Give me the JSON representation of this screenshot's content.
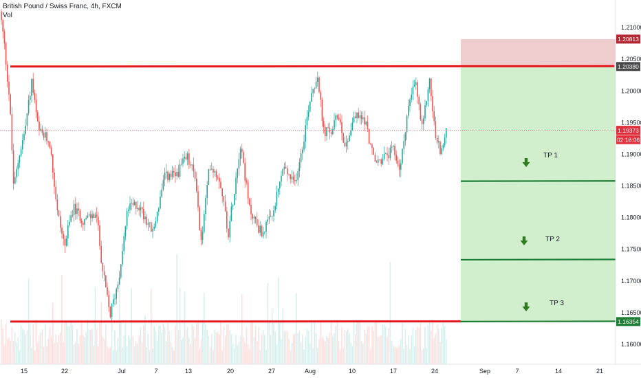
{
  "chart_data": {
    "type": "candlestick",
    "symbol_title": "British Pound / Swiss Franc, 4h, FXCM",
    "volume_label": "Vol",
    "x_tick_labels": [
      "15",
      "22",
      "Jul",
      "7",
      "13",
      "20",
      "27",
      "Aug",
      "10",
      "17",
      "24",
      "Sep",
      "7",
      "14",
      "21"
    ],
    "y_tick_labels": [
      "1.21000",
      "1.20500",
      "1.20000",
      "1.19500",
      "1.19000",
      "1.18500",
      "1.18000",
      "1.17500",
      "1.17000",
      "1.16500",
      "1.16000"
    ],
    "y_range": [
      1.1568,
      1.2143
    ],
    "price_badges": [
      {
        "value": "1.20813",
        "price": 1.20813,
        "color": "#b22833"
      },
      {
        "value": "1.20380",
        "price": 1.2038,
        "color": "#4a4a4a"
      },
      {
        "value": "1.19373",
        "price": 1.19373,
        "color": "#e0303c"
      },
      {
        "value": "02:18:06",
        "price": 1.19225,
        "color": "#e0303c"
      },
      {
        "value": "1.16354",
        "price": 1.16354,
        "color": "#1e7d34"
      }
    ],
    "resistance_level": 1.2038,
    "support_level": 1.16354,
    "stop_zone": [
      1.2038,
      1.20813
    ],
    "target_zone": [
      1.16354,
      1.2038
    ],
    "take_profits": [
      {
        "label": "TP 1",
        "price": 1.1857
      },
      {
        "label": "TP 2",
        "price": 1.1733
      },
      {
        "label": "TP 3",
        "price": 1.16354
      }
    ],
    "current_price": 1.19373,
    "colors": {
      "up": "#26a69a",
      "down": "#ef5350",
      "resistance": "#e5161e",
      "target_line": "#1e7d34",
      "stop_fill": "#e9bcbe",
      "target_fill": "#c9ebc4",
      "arrow": "#2f7d1e"
    }
  }
}
